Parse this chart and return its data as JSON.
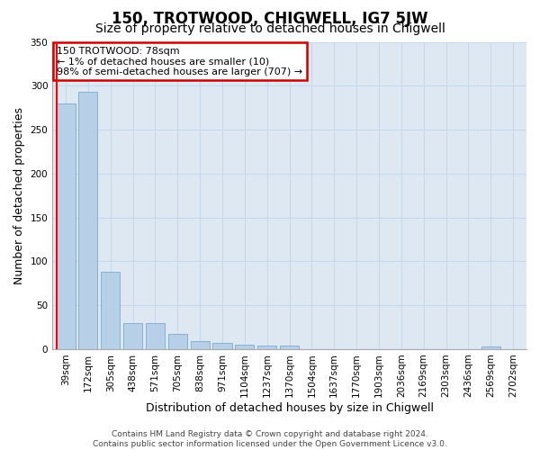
{
  "title": "150, TROTWOOD, CHIGWELL, IG7 5JW",
  "subtitle": "Size of property relative to detached houses in Chigwell",
  "xlabel": "Distribution of detached houses by size in Chigwell",
  "ylabel": "Number of detached properties",
  "categories": [
    "39sqm",
    "172sqm",
    "305sqm",
    "438sqm",
    "571sqm",
    "705sqm",
    "838sqm",
    "971sqm",
    "1104sqm",
    "1237sqm",
    "1370sqm",
    "1504sqm",
    "1637sqm",
    "1770sqm",
    "1903sqm",
    "2036sqm",
    "2169sqm",
    "2303sqm",
    "2436sqm",
    "2569sqm",
    "2702sqm"
  ],
  "values": [
    280,
    293,
    88,
    30,
    30,
    17,
    9,
    7,
    5,
    4,
    4,
    0,
    0,
    0,
    0,
    0,
    0,
    0,
    0,
    3,
    0
  ],
  "bar_color": "#b8cfe8",
  "bar_edge_color": "#7aaad0",
  "annotation_text": "150 TROTWOOD: 78sqm\n← 1% of detached houses are smaller (10)\n98% of semi-detached houses are larger (707) →",
  "annotation_box_color": "#ffffff",
  "annotation_box_edge_color": "#cc0000",
  "ylim": [
    0,
    350
  ],
  "yticks": [
    0,
    50,
    100,
    150,
    200,
    250,
    300,
    350
  ],
  "grid_color": "#c8d8e8",
  "background_color": "#dde8f3",
  "footer_text": "Contains HM Land Registry data © Crown copyright and database right 2024.\nContains public sector information licensed under the Open Government Licence v3.0.",
  "title_fontsize": 12,
  "subtitle_fontsize": 10,
  "axis_label_fontsize": 9,
  "tick_fontsize": 7.5,
  "annotation_fontsize": 8,
  "footer_fontsize": 6.5
}
